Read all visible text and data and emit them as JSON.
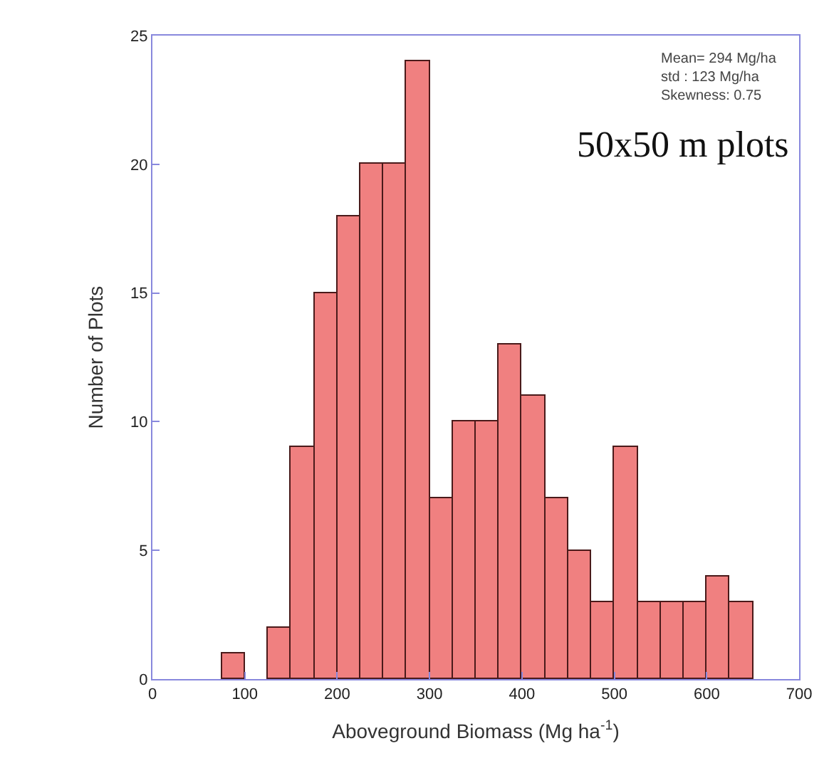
{
  "chart_data": {
    "type": "histogram",
    "xlabel": "Aboveground Biomass (Mg ha$^{-1}$)",
    "ylabel": "Number of Plots",
    "bins": [
      75,
      100,
      125,
      150,
      175,
      200,
      225,
      250,
      275,
      300,
      325,
      350,
      375,
      400,
      425,
      450,
      475,
      500,
      525,
      550,
      575,
      600,
      625,
      650
    ],
    "values": [
      1,
      0,
      2,
      9,
      15,
      18,
      20,
      20,
      24,
      7,
      10,
      10,
      13,
      11,
      7,
      5,
      3,
      9,
      3,
      3,
      3,
      4,
      3
    ],
    "color": "#f08080",
    "xlim": [
      0,
      700
    ],
    "xticks": [
      0,
      100,
      200,
      300,
      400,
      500,
      600,
      700
    ],
    "ylim": [
      0,
      25
    ],
    "yticks": [
      0,
      5,
      10,
      15,
      20,
      25
    ],
    "annotations": [
      "Mean= 294 Mg/ha\nstd : 123 Mg/ha\nSkewness: 0.75",
      "50x50 m plots"
    ]
  }
}
